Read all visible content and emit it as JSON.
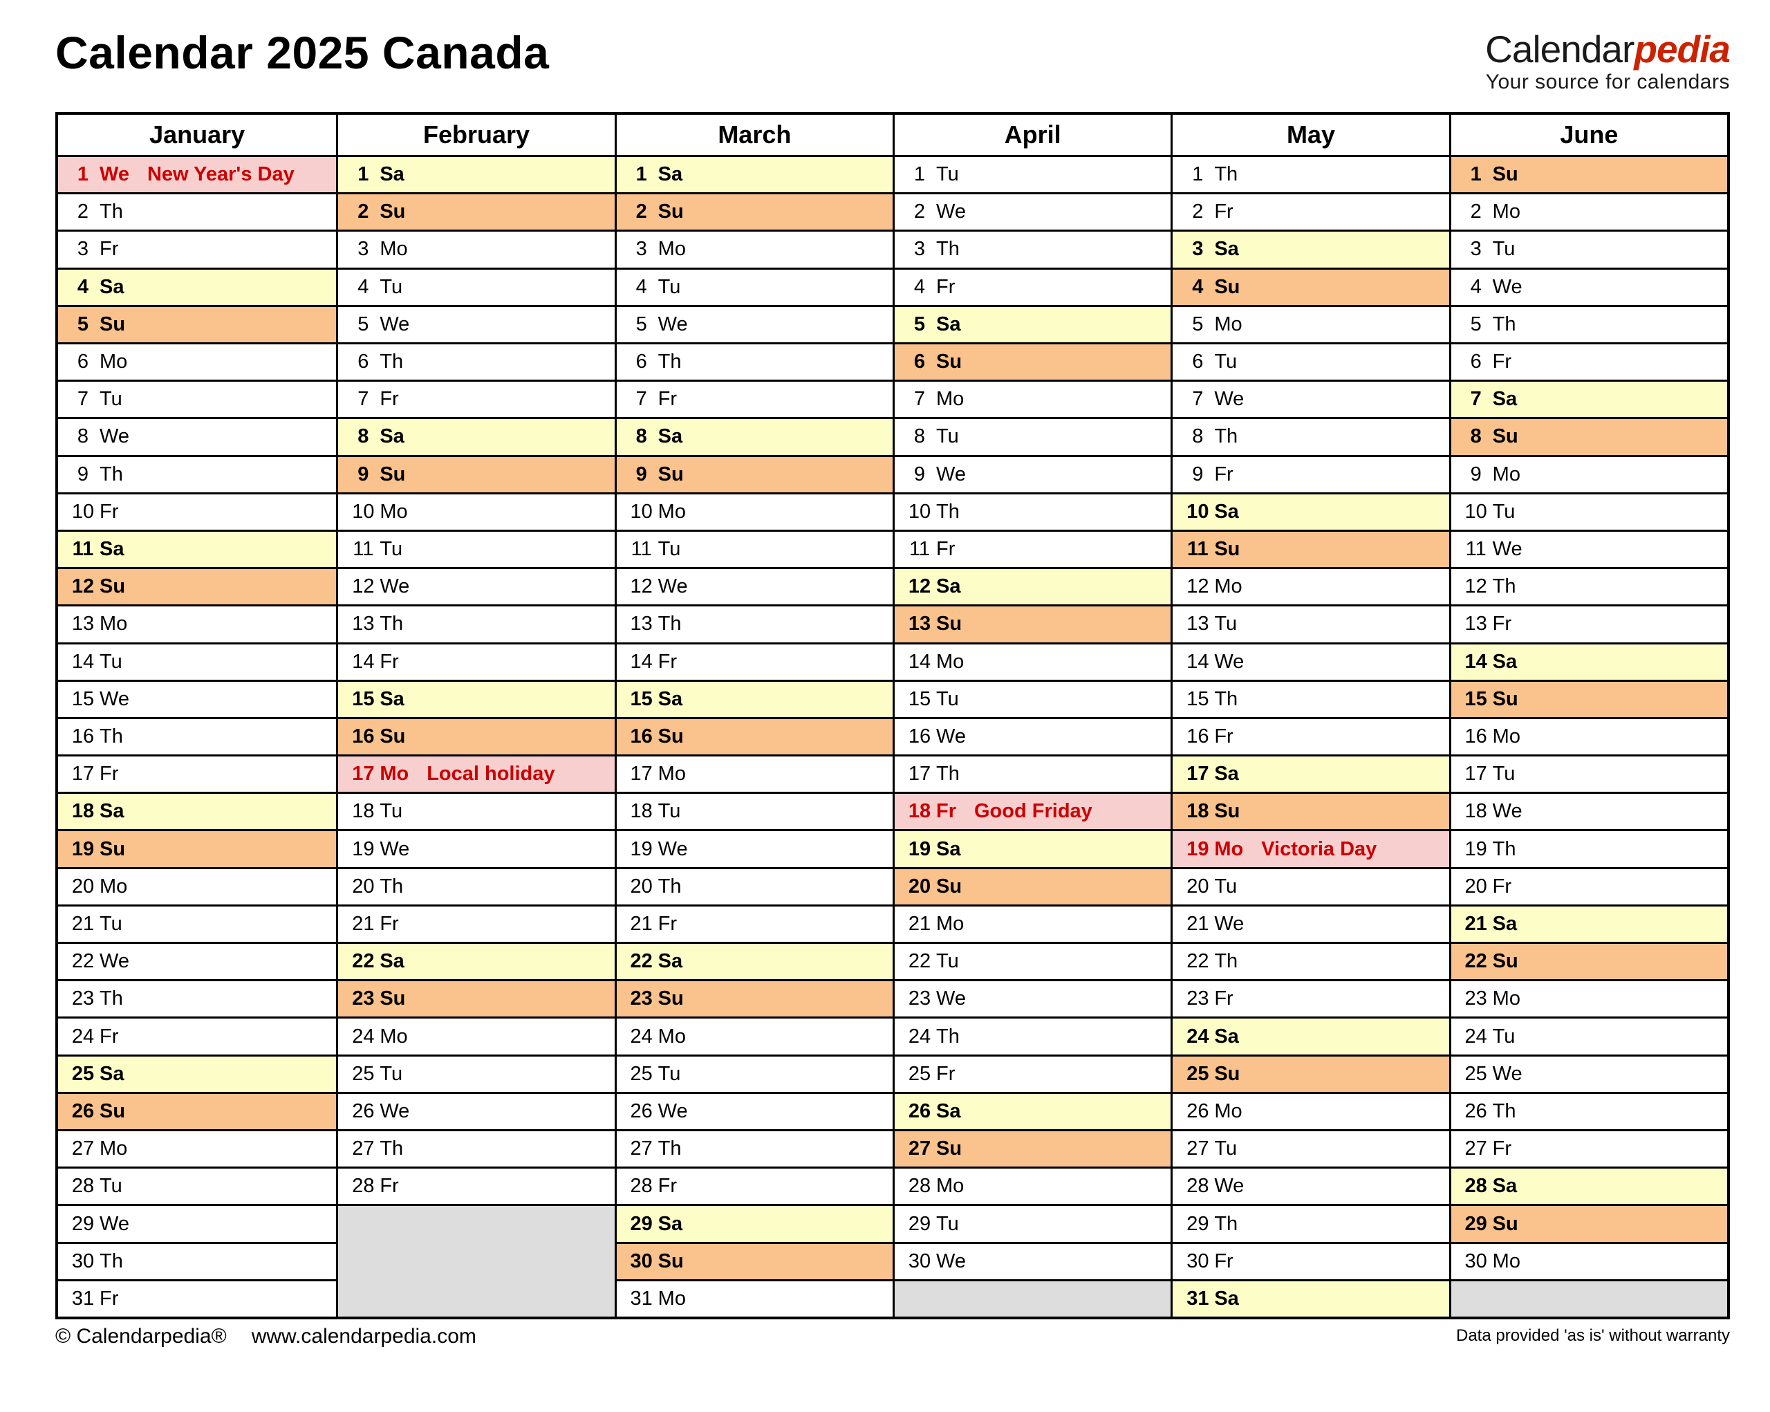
{
  "header": {
    "title": "Calendar 2025 Canada",
    "logo": {
      "brand_black": "Calendar",
      "brand_red": "pedia",
      "tagline": "Your source for calendars"
    }
  },
  "colors": {
    "saturday_bg": "#FDFDC8",
    "sunday_bg": "#FAC28C",
    "holiday_bg": "#F8CFCF",
    "empty_bg": "#DDDDDD",
    "holiday_text": "#CC0000",
    "logo_red": "#CC2200"
  },
  "footer": {
    "copyright": "© Calendarpedia®",
    "url": "www.calendarpedia.com",
    "disclaimer": "Data provided 'as is' without warranty"
  },
  "calendar": {
    "year": 2025,
    "months": [
      {
        "name": "January",
        "days": [
          {
            "d": 1,
            "wd": "We",
            "holiday": "New Year's Day"
          },
          {
            "d": 2,
            "wd": "Th"
          },
          {
            "d": 3,
            "wd": "Fr"
          },
          {
            "d": 4,
            "wd": "Sa"
          },
          {
            "d": 5,
            "wd": "Su"
          },
          {
            "d": 6,
            "wd": "Mo"
          },
          {
            "d": 7,
            "wd": "Tu"
          },
          {
            "d": 8,
            "wd": "We"
          },
          {
            "d": 9,
            "wd": "Th"
          },
          {
            "d": 10,
            "wd": "Fr"
          },
          {
            "d": 11,
            "wd": "Sa"
          },
          {
            "d": 12,
            "wd": "Su"
          },
          {
            "d": 13,
            "wd": "Mo"
          },
          {
            "d": 14,
            "wd": "Tu"
          },
          {
            "d": 15,
            "wd": "We"
          },
          {
            "d": 16,
            "wd": "Th"
          },
          {
            "d": 17,
            "wd": "Fr"
          },
          {
            "d": 18,
            "wd": "Sa"
          },
          {
            "d": 19,
            "wd": "Su"
          },
          {
            "d": 20,
            "wd": "Mo"
          },
          {
            "d": 21,
            "wd": "Tu"
          },
          {
            "d": 22,
            "wd": "We"
          },
          {
            "d": 23,
            "wd": "Th"
          },
          {
            "d": 24,
            "wd": "Fr"
          },
          {
            "d": 25,
            "wd": "Sa"
          },
          {
            "d": 26,
            "wd": "Su"
          },
          {
            "d": 27,
            "wd": "Mo"
          },
          {
            "d": 28,
            "wd": "Tu"
          },
          {
            "d": 29,
            "wd": "We"
          },
          {
            "d": 30,
            "wd": "Th"
          },
          {
            "d": 31,
            "wd": "Fr"
          }
        ]
      },
      {
        "name": "February",
        "days": [
          {
            "d": 1,
            "wd": "Sa"
          },
          {
            "d": 2,
            "wd": "Su"
          },
          {
            "d": 3,
            "wd": "Mo"
          },
          {
            "d": 4,
            "wd": "Tu"
          },
          {
            "d": 5,
            "wd": "We"
          },
          {
            "d": 6,
            "wd": "Th"
          },
          {
            "d": 7,
            "wd": "Fr"
          },
          {
            "d": 8,
            "wd": "Sa"
          },
          {
            "d": 9,
            "wd": "Su"
          },
          {
            "d": 10,
            "wd": "Mo"
          },
          {
            "d": 11,
            "wd": "Tu"
          },
          {
            "d": 12,
            "wd": "We"
          },
          {
            "d": 13,
            "wd": "Th"
          },
          {
            "d": 14,
            "wd": "Fr"
          },
          {
            "d": 15,
            "wd": "Sa"
          },
          {
            "d": 16,
            "wd": "Su"
          },
          {
            "d": 17,
            "wd": "Mo",
            "holiday": "Local holiday"
          },
          {
            "d": 18,
            "wd": "Tu"
          },
          {
            "d": 19,
            "wd": "We"
          },
          {
            "d": 20,
            "wd": "Th"
          },
          {
            "d": 21,
            "wd": "Fr"
          },
          {
            "d": 22,
            "wd": "Sa"
          },
          {
            "d": 23,
            "wd": "Su"
          },
          {
            "d": 24,
            "wd": "Mo"
          },
          {
            "d": 25,
            "wd": "Tu"
          },
          {
            "d": 26,
            "wd": "We"
          },
          {
            "d": 27,
            "wd": "Th"
          },
          {
            "d": 28,
            "wd": "Fr"
          }
        ]
      },
      {
        "name": "March",
        "days": [
          {
            "d": 1,
            "wd": "Sa"
          },
          {
            "d": 2,
            "wd": "Su"
          },
          {
            "d": 3,
            "wd": "Mo"
          },
          {
            "d": 4,
            "wd": "Tu"
          },
          {
            "d": 5,
            "wd": "We"
          },
          {
            "d": 6,
            "wd": "Th"
          },
          {
            "d": 7,
            "wd": "Fr"
          },
          {
            "d": 8,
            "wd": "Sa"
          },
          {
            "d": 9,
            "wd": "Su"
          },
          {
            "d": 10,
            "wd": "Mo"
          },
          {
            "d": 11,
            "wd": "Tu"
          },
          {
            "d": 12,
            "wd": "We"
          },
          {
            "d": 13,
            "wd": "Th"
          },
          {
            "d": 14,
            "wd": "Fr"
          },
          {
            "d": 15,
            "wd": "Sa"
          },
          {
            "d": 16,
            "wd": "Su"
          },
          {
            "d": 17,
            "wd": "Mo"
          },
          {
            "d": 18,
            "wd": "Tu"
          },
          {
            "d": 19,
            "wd": "We"
          },
          {
            "d": 20,
            "wd": "Th"
          },
          {
            "d": 21,
            "wd": "Fr"
          },
          {
            "d": 22,
            "wd": "Sa"
          },
          {
            "d": 23,
            "wd": "Su"
          },
          {
            "d": 24,
            "wd": "Mo"
          },
          {
            "d": 25,
            "wd": "Tu"
          },
          {
            "d": 26,
            "wd": "We"
          },
          {
            "d": 27,
            "wd": "Th"
          },
          {
            "d": 28,
            "wd": "Fr"
          },
          {
            "d": 29,
            "wd": "Sa"
          },
          {
            "d": 30,
            "wd": "Su"
          },
          {
            "d": 31,
            "wd": "Mo"
          }
        ]
      },
      {
        "name": "April",
        "days": [
          {
            "d": 1,
            "wd": "Tu"
          },
          {
            "d": 2,
            "wd": "We"
          },
          {
            "d": 3,
            "wd": "Th"
          },
          {
            "d": 4,
            "wd": "Fr"
          },
          {
            "d": 5,
            "wd": "Sa"
          },
          {
            "d": 6,
            "wd": "Su"
          },
          {
            "d": 7,
            "wd": "Mo"
          },
          {
            "d": 8,
            "wd": "Tu"
          },
          {
            "d": 9,
            "wd": "We"
          },
          {
            "d": 10,
            "wd": "Th"
          },
          {
            "d": 11,
            "wd": "Fr"
          },
          {
            "d": 12,
            "wd": "Sa"
          },
          {
            "d": 13,
            "wd": "Su"
          },
          {
            "d": 14,
            "wd": "Mo"
          },
          {
            "d": 15,
            "wd": "Tu"
          },
          {
            "d": 16,
            "wd": "We"
          },
          {
            "d": 17,
            "wd": "Th"
          },
          {
            "d": 18,
            "wd": "Fr",
            "holiday": "Good Friday"
          },
          {
            "d": 19,
            "wd": "Sa"
          },
          {
            "d": 20,
            "wd": "Su"
          },
          {
            "d": 21,
            "wd": "Mo"
          },
          {
            "d": 22,
            "wd": "Tu"
          },
          {
            "d": 23,
            "wd": "We"
          },
          {
            "d": 24,
            "wd": "Th"
          },
          {
            "d": 25,
            "wd": "Fr"
          },
          {
            "d": 26,
            "wd": "Sa"
          },
          {
            "d": 27,
            "wd": "Su"
          },
          {
            "d": 28,
            "wd": "Mo"
          },
          {
            "d": 29,
            "wd": "Tu"
          },
          {
            "d": 30,
            "wd": "We"
          }
        ]
      },
      {
        "name": "May",
        "days": [
          {
            "d": 1,
            "wd": "Th"
          },
          {
            "d": 2,
            "wd": "Fr"
          },
          {
            "d": 3,
            "wd": "Sa"
          },
          {
            "d": 4,
            "wd": "Su"
          },
          {
            "d": 5,
            "wd": "Mo"
          },
          {
            "d": 6,
            "wd": "Tu"
          },
          {
            "d": 7,
            "wd": "We"
          },
          {
            "d": 8,
            "wd": "Th"
          },
          {
            "d": 9,
            "wd": "Fr"
          },
          {
            "d": 10,
            "wd": "Sa"
          },
          {
            "d": 11,
            "wd": "Su"
          },
          {
            "d": 12,
            "wd": "Mo"
          },
          {
            "d": 13,
            "wd": "Tu"
          },
          {
            "d": 14,
            "wd": "We"
          },
          {
            "d": 15,
            "wd": "Th"
          },
          {
            "d": 16,
            "wd": "Fr"
          },
          {
            "d": 17,
            "wd": "Sa"
          },
          {
            "d": 18,
            "wd": "Su"
          },
          {
            "d": 19,
            "wd": "Mo",
            "holiday": "Victoria Day"
          },
          {
            "d": 20,
            "wd": "Tu"
          },
          {
            "d": 21,
            "wd": "We"
          },
          {
            "d": 22,
            "wd": "Th"
          },
          {
            "d": 23,
            "wd": "Fr"
          },
          {
            "d": 24,
            "wd": "Sa"
          },
          {
            "d": 25,
            "wd": "Su"
          },
          {
            "d": 26,
            "wd": "Mo"
          },
          {
            "d": 27,
            "wd": "Tu"
          },
          {
            "d": 28,
            "wd": "We"
          },
          {
            "d": 29,
            "wd": "Th"
          },
          {
            "d": 30,
            "wd": "Fr"
          },
          {
            "d": 31,
            "wd": "Sa"
          }
        ]
      },
      {
        "name": "June",
        "days": [
          {
            "d": 1,
            "wd": "Su"
          },
          {
            "d": 2,
            "wd": "Mo"
          },
          {
            "d": 3,
            "wd": "Tu"
          },
          {
            "d": 4,
            "wd": "We"
          },
          {
            "d": 5,
            "wd": "Th"
          },
          {
            "d": 6,
            "wd": "Fr"
          },
          {
            "d": 7,
            "wd": "Sa"
          },
          {
            "d": 8,
            "wd": "Su"
          },
          {
            "d": 9,
            "wd": "Mo"
          },
          {
            "d": 10,
            "wd": "Tu"
          },
          {
            "d": 11,
            "wd": "We"
          },
          {
            "d": 12,
            "wd": "Th"
          },
          {
            "d": 13,
            "wd": "Fr"
          },
          {
            "d": 14,
            "wd": "Sa"
          },
          {
            "d": 15,
            "wd": "Su"
          },
          {
            "d": 16,
            "wd": "Mo"
          },
          {
            "d": 17,
            "wd": "Tu"
          },
          {
            "d": 18,
            "wd": "We"
          },
          {
            "d": 19,
            "wd": "Th"
          },
          {
            "d": 20,
            "wd": "Fr"
          },
          {
            "d": 21,
            "wd": "Sa"
          },
          {
            "d": 22,
            "wd": "Su"
          },
          {
            "d": 23,
            "wd": "Mo"
          },
          {
            "d": 24,
            "wd": "Tu"
          },
          {
            "d": 25,
            "wd": "We"
          },
          {
            "d": 26,
            "wd": "Th"
          },
          {
            "d": 27,
            "wd": "Fr"
          },
          {
            "d": 28,
            "wd": "Sa"
          },
          {
            "d": 29,
            "wd": "Su"
          },
          {
            "d": 30,
            "wd": "Mo"
          }
        ]
      }
    ]
  }
}
